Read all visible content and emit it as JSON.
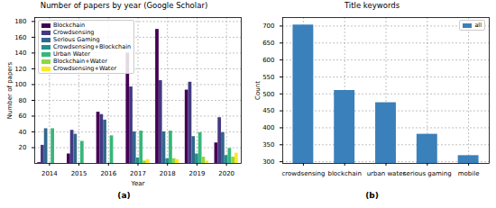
{
  "chart_data": [
    {
      "type": "bar",
      "title": "Number of papers by year (Google Scholar)",
      "caption": "(a)",
      "xlabel": "Year",
      "ylabel": "Number of papers",
      "categories": [
        "2014",
        "2015",
        "2016",
        "2017",
        "2018",
        "2019",
        "2020"
      ],
      "series": [
        {
          "name": "Blockchain",
          "color": "#440154",
          "values": [
            1,
            12,
            65,
            140,
            170,
            93,
            26
          ]
        },
        {
          "name": "Crowdsensing",
          "color": "#443983",
          "values": [
            23,
            42,
            62,
            97,
            105,
            103,
            58
          ]
        },
        {
          "name": "Serious Gaming",
          "color": "#31688e",
          "values": [
            44,
            37,
            55,
            40,
            40,
            34,
            39
          ]
        },
        {
          "name": "Crowdsensing+Blockchain",
          "color": "#21918c",
          "values": [
            0,
            0,
            0,
            7,
            6,
            12,
            10
          ]
        },
        {
          "name": "Urban Water",
          "color": "#35b779",
          "values": [
            44,
            28,
            35,
            41,
            41,
            39,
            19
          ]
        },
        {
          "name": "Blockchain+Water",
          "color": "#90d743",
          "values": [
            0,
            0,
            0,
            3,
            6,
            8,
            8
          ]
        },
        {
          "name": "Crowdsensing+Water",
          "color": "#fde725",
          "values": [
            0,
            0,
            0,
            5,
            5,
            3,
            13
          ]
        }
      ],
      "ylim": [
        0,
        185
      ],
      "yticks": [
        20,
        40,
        60,
        80,
        100,
        120,
        140,
        160,
        180
      ],
      "grid": true,
      "legend": "upper left"
    },
    {
      "type": "bar",
      "title": "Title keywords",
      "caption": "(b)",
      "ylabel": "Count",
      "categories": [
        "crowdsensing",
        "blockchain",
        "urban water",
        "serious gaming",
        "mobile"
      ],
      "series": [
        {
          "name": "all",
          "color": "#3a80ba",
          "values": [
            703,
            510,
            474,
            381,
            318
          ]
        }
      ],
      "ylim": [
        295,
        725
      ],
      "yticks": [
        300,
        350,
        400,
        450,
        500,
        550,
        600,
        650,
        700
      ],
      "grid": true,
      "legend": "upper right"
    }
  ]
}
